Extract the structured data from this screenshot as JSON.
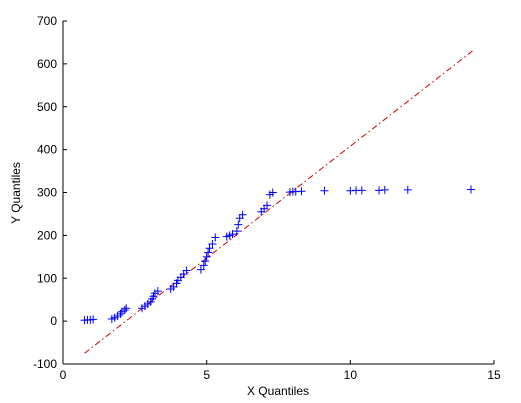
{
  "chart_data": {
    "type": "scatter",
    "title": "",
    "xlabel": "X Quantiles",
    "ylabel": "Y Quantiles",
    "xlim": [
      0,
      15
    ],
    "ylim": [
      -100,
      700
    ],
    "xticks": [
      "0",
      "5",
      "10",
      "15"
    ],
    "yticks": [
      "-100",
      "0",
      "100",
      "200",
      "300",
      "400",
      "500",
      "600",
      "700"
    ],
    "grid": false,
    "marker": "+",
    "colors": {
      "points": "#0000ff",
      "reference_line": "#cc0000",
      "axes": "#000000"
    },
    "reference_line": {
      "style": "dash-dot",
      "x": [
        0.75,
        14.25
      ],
      "y": [
        -75,
        630
      ]
    },
    "points": [
      [
        0.75,
        2
      ],
      [
        0.85,
        3
      ],
      [
        0.95,
        3
      ],
      [
        1.05,
        4
      ],
      [
        1.7,
        5
      ],
      [
        1.8,
        8
      ],
      [
        1.9,
        12
      ],
      [
        2.0,
        17
      ],
      [
        2.05,
        22
      ],
      [
        2.15,
        26
      ],
      [
        2.2,
        30
      ],
      [
        2.75,
        30
      ],
      [
        2.85,
        35
      ],
      [
        2.95,
        40
      ],
      [
        3.05,
        45
      ],
      [
        3.1,
        52
      ],
      [
        3.15,
        58
      ],
      [
        3.2,
        65
      ],
      [
        3.3,
        70
      ],
      [
        3.75,
        75
      ],
      [
        3.85,
        80
      ],
      [
        3.95,
        88
      ],
      [
        4.0,
        95
      ],
      [
        4.1,
        102
      ],
      [
        4.2,
        110
      ],
      [
        4.3,
        118
      ],
      [
        4.8,
        120
      ],
      [
        4.9,
        130
      ],
      [
        4.95,
        140
      ],
      [
        5.0,
        150
      ],
      [
        5.05,
        160
      ],
      [
        5.1,
        170
      ],
      [
        5.2,
        180
      ],
      [
        5.3,
        195
      ],
      [
        5.7,
        197
      ],
      [
        5.8,
        200
      ],
      [
        5.9,
        203
      ],
      [
        6.05,
        210
      ],
      [
        6.1,
        225
      ],
      [
        6.15,
        240
      ],
      [
        6.25,
        248
      ],
      [
        6.9,
        255
      ],
      [
        7.0,
        262
      ],
      [
        7.1,
        270
      ],
      [
        7.2,
        295
      ],
      [
        7.3,
        300
      ],
      [
        7.9,
        301
      ],
      [
        8.0,
        302
      ],
      [
        8.1,
        302
      ],
      [
        8.3,
        303
      ],
      [
        9.1,
        304
      ],
      [
        10.0,
        304
      ],
      [
        10.2,
        305
      ],
      [
        10.4,
        305
      ],
      [
        11.0,
        305
      ],
      [
        11.2,
        306
      ],
      [
        12.0,
        306
      ],
      [
        14.2,
        307
      ]
    ]
  }
}
